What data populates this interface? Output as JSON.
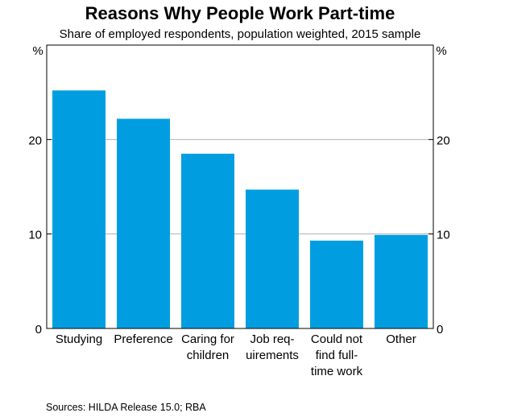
{
  "chart_data": {
    "type": "bar",
    "title": "Reasons Why People Work Part-time",
    "subtitle": "Share of employed respondents, population weighted, 2015 sample",
    "categories": [
      [
        "Studying"
      ],
      [
        "Preference"
      ],
      [
        "Caring for",
        "children"
      ],
      [
        "Job req-",
        "uirements"
      ],
      [
        "Could not",
        "find full-",
        "time work"
      ],
      [
        "Other"
      ]
    ],
    "values": [
      25.2,
      22.2,
      18.5,
      14.7,
      9.3,
      9.9
    ],
    "ylim": [
      0,
      30
    ],
    "yticks": [
      0,
      10,
      20
    ],
    "ylabel_left": "%",
    "ylabel_right": "%",
    "grid": true,
    "bar_color": "#009ee0",
    "source": "Sources:  HILDA Release 15.0; RBA"
  }
}
